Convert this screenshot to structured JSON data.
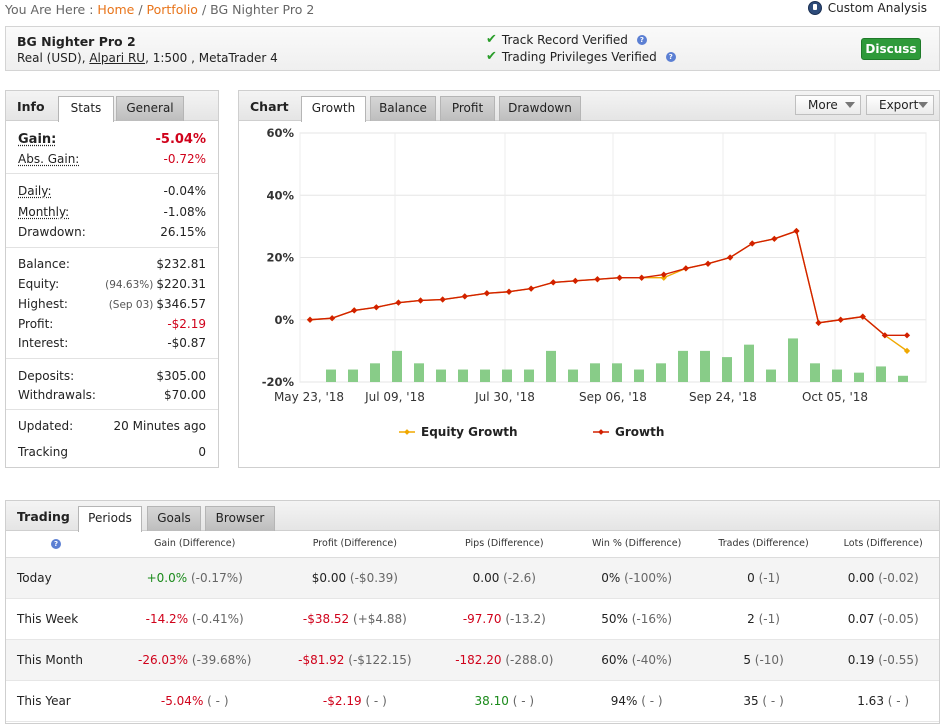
{
  "breadcrumb": {
    "prefix": "You Are Here :",
    "home": "Home",
    "sep": "/",
    "portfolio": "Portfolio",
    "current": "BG Nighter Pro 2"
  },
  "custom_analysis": "Custom Analysis",
  "system": {
    "name": "BG Nighter Pro 2",
    "account_type": "Real (USD),",
    "broker": "Alpari RU",
    "details": ", 1:500 , MetaTrader 4"
  },
  "verify": {
    "track_record": "Track Record Verified",
    "trading_privileges": "Trading Privileges Verified",
    "q": "?"
  },
  "discuss_label": "Discuss",
  "info": {
    "title": "Info",
    "tabs": [
      "Stats",
      "General"
    ],
    "gain_label": "Gain:",
    "gain_value": "-5.04%",
    "abs_gain_label": "Abs. Gain:",
    "abs_gain_value": "-0.72%",
    "daily_label": "Daily:",
    "daily_value": "-0.04%",
    "monthly_label": "Monthly:",
    "monthly_value": "-1.08%",
    "drawdown_label": "Drawdown:",
    "drawdown_value": "26.15%",
    "balance_label": "Balance:",
    "balance_value": "$232.81",
    "equity_label": "Equity:",
    "equity_note": "(94.63%)",
    "equity_value": "$220.31",
    "highest_label": "Highest:",
    "highest_note": "(Sep 03)",
    "highest_value": "$346.57",
    "profit_label": "Profit:",
    "profit_value": "-$2.19",
    "interest_label": "Interest:",
    "interest_value": "-$0.87",
    "deposits_label": "Deposits:",
    "deposits_value": "$305.00",
    "withdrawals_label": "Withdrawals:",
    "withdrawals_value": "$70.00",
    "updated_label": "Updated:",
    "updated_value": "20 Minutes ago",
    "tracking_label": "Tracking",
    "tracking_value": "0"
  },
  "chart_panel": {
    "title": "Chart",
    "tabs": [
      "Growth",
      "Balance",
      "Profit",
      "Drawdown"
    ],
    "more": "More",
    "export": "Export"
  },
  "chart_data": {
    "type": "line",
    "yticks": [
      "60%",
      "40%",
      "20%",
      "0%",
      "-20%"
    ],
    "ylim": [
      -20,
      60
    ],
    "xticks": [
      "May 23, '18",
      "Jul 09, '18",
      "Jul 30, '18",
      "Sep 06, '18",
      "Sep 24, '18",
      "Oct 05, '18"
    ],
    "grid": true,
    "legend_position": "bottom",
    "series": [
      {
        "name": "Equity Growth",
        "color": "#f0a800",
        "values": [
          0,
          0.5,
          3,
          4,
          5.5,
          6.2,
          6.5,
          7.5,
          8.5,
          9,
          10,
          12,
          12.5,
          13,
          13.5,
          13.5,
          13.5,
          16.5,
          18,
          20,
          24.5,
          26,
          28.5,
          -1,
          0,
          1,
          -5,
          -10
        ]
      },
      {
        "name": "Growth",
        "color": "#d22000",
        "values": [
          0,
          0.5,
          3,
          4,
          5.5,
          6.2,
          6.5,
          7.5,
          8.5,
          9,
          10,
          12,
          12.5,
          13,
          13.5,
          13.5,
          14.5,
          16.5,
          18,
          20,
          24.5,
          26,
          28.5,
          -1,
          0,
          1,
          -5,
          -5
        ]
      }
    ],
    "bars": [
      -16,
      -16,
      -14,
      -10,
      -14,
      -16,
      -16,
      -16,
      -16,
      -16,
      -10,
      -16,
      -14,
      -14,
      -16,
      -14,
      -10,
      -10,
      -12,
      -8,
      -16,
      -6,
      -14,
      -16,
      -17,
      -15,
      -18
    ]
  },
  "trading": {
    "title": "Trading",
    "tabs": [
      "Periods",
      "Goals",
      "Browser"
    ],
    "q": "?",
    "headers": [
      "Gain (Difference)",
      "Profit (Difference)",
      "Pips (Difference)",
      "Win % (Difference)",
      "Trades (Difference)",
      "Lots (Difference)"
    ],
    "rows": [
      {
        "period": "Today",
        "gain": "+0.0%",
        "gain_d": "(-0.17%)",
        "profit": "$0.00",
        "profit_d": "(-$0.39)",
        "pips": "0.00",
        "pips_d": "(-2.6)",
        "win": "0%",
        "win_d": "(-100%)",
        "trades": "0",
        "trades_d": "(-1)",
        "lots": "0.00",
        "lots_d": "(-0.02)"
      },
      {
        "period": "This Week",
        "gain": "-14.2%",
        "gain_d": "(-0.41%)",
        "profit": "-$38.52",
        "profit_d": "(+$4.88)",
        "pips": "-97.70",
        "pips_d": "(-13.2)",
        "win": "50%",
        "win_d": "(-16%)",
        "trades": "2",
        "trades_d": "(-1)",
        "lots": "0.07",
        "lots_d": "(-0.05)"
      },
      {
        "period": "This Month",
        "gain": "-26.03%",
        "gain_d": "(-39.68%)",
        "profit": "-$81.92",
        "profit_d": "(-$122.15)",
        "pips": "-182.20",
        "pips_d": "(-288.0)",
        "win": "60%",
        "win_d": "(-40%)",
        "trades": "5",
        "trades_d": "(-10)",
        "lots": "0.19",
        "lots_d": "(-0.55)"
      },
      {
        "period": "This Year",
        "gain": "-5.04%",
        "gain_d": "( - )",
        "profit": "-$2.19",
        "profit_d": "( - )",
        "pips": "38.10",
        "pips_d": "( - )",
        "win": "94%",
        "win_d": "( - )",
        "trades": "35",
        "trades_d": "( - )",
        "lots": "1.63",
        "lots_d": "( - )"
      }
    ]
  }
}
